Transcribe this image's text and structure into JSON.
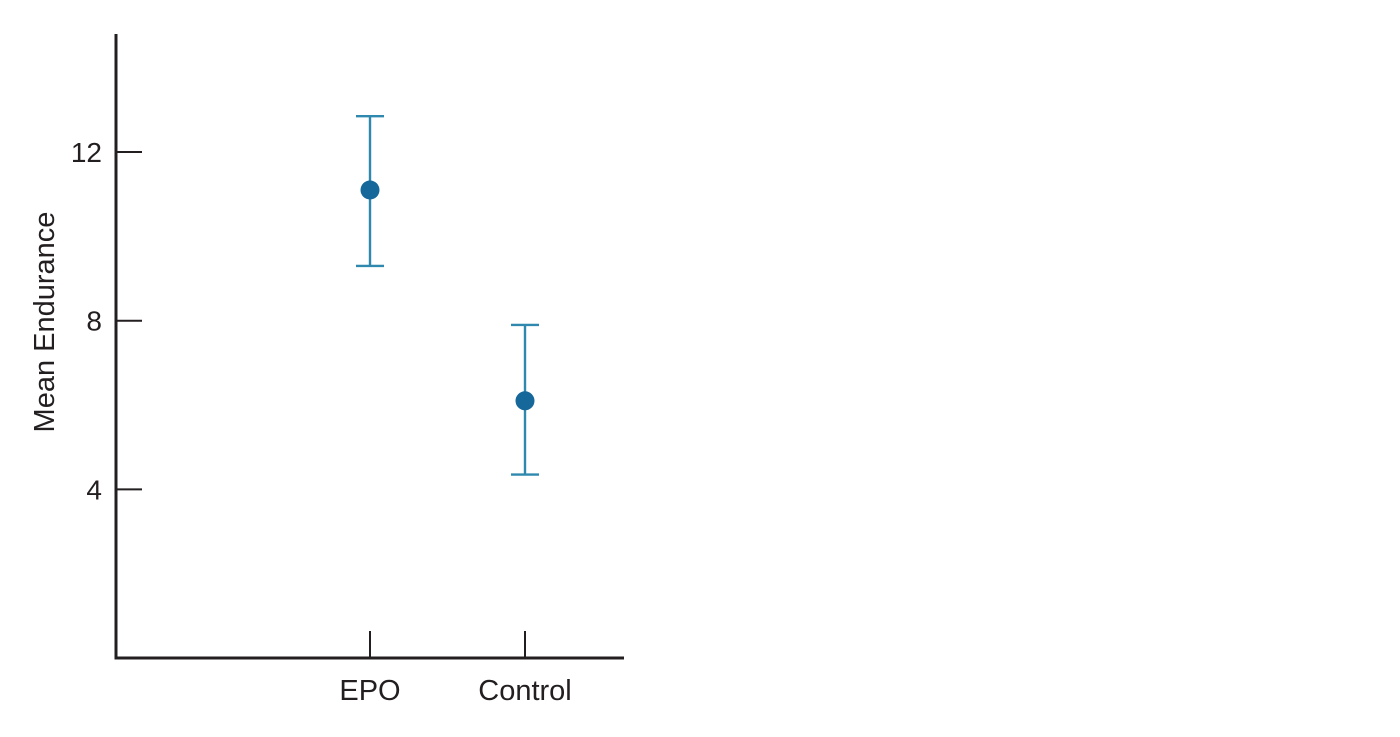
{
  "chart_data": {
    "type": "scatter",
    "title": "",
    "xlabel": "",
    "ylabel": "Mean Endurance",
    "categories": [
      "EPO",
      "Control"
    ],
    "values": [
      11.1,
      6.1
    ],
    "error_low": [
      9.3,
      4.35
    ],
    "error_high": [
      12.85,
      7.9
    ],
    "ylim": [
      0,
      14.8
    ],
    "yticks": [
      "4",
      "8",
      "12"
    ],
    "ytick_values": [
      4,
      8,
      12
    ],
    "grid": false,
    "legend": "none",
    "colors": {
      "point": "#16689a",
      "error_bar": "#2f88ad",
      "axis": "#231f20"
    }
  }
}
